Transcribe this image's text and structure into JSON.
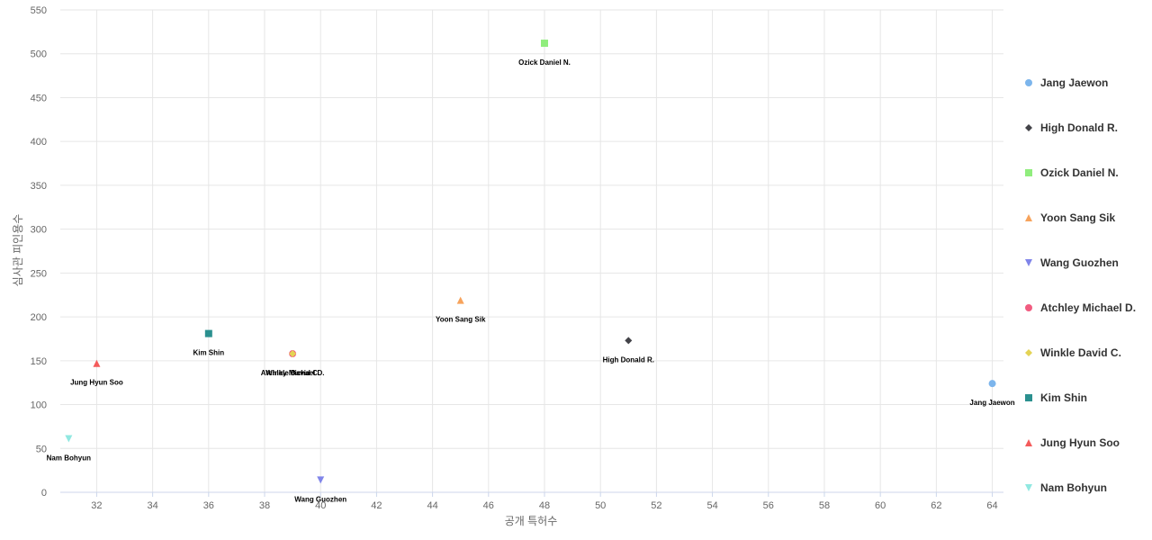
{
  "chart_data": {
    "type": "scatter",
    "title": "",
    "xlabel": "공개 특허수",
    "ylabel": "심사관 피인용수",
    "xlim": [
      30.7,
      64.4
    ],
    "ylim": [
      0,
      550
    ],
    "xticks": [
      32,
      34,
      36,
      38,
      40,
      42,
      44,
      46,
      48,
      50,
      52,
      54,
      56,
      58,
      60,
      62,
      64
    ],
    "yticks": [
      0,
      50,
      100,
      150,
      200,
      250,
      300,
      350,
      400,
      450,
      500,
      550
    ],
    "grid": true,
    "legend_position": "right",
    "series": [
      {
        "name": "Jang Jaewon",
        "x": 64,
        "y": 124,
        "marker": "circle",
        "color": "#7cb5ec"
      },
      {
        "name": "High Donald R.",
        "x": 51,
        "y": 173,
        "marker": "diamond",
        "color": "#434348"
      },
      {
        "name": "Ozick Daniel N.",
        "x": 48,
        "y": 512,
        "marker": "square",
        "color": "#90ed7d"
      },
      {
        "name": "Yoon Sang Sik",
        "x": 45,
        "y": 219,
        "marker": "triangle",
        "color": "#f7a35c"
      },
      {
        "name": "Wang Guozhen",
        "x": 40,
        "y": 14,
        "marker": "triangle-down",
        "color": "#8085e9"
      },
      {
        "name": "Atchley Michael D.",
        "x": 39,
        "y": 158,
        "marker": "circle",
        "color": "#f15c80"
      },
      {
        "name": "Winkle David C.",
        "x": 39,
        "y": 158,
        "marker": "diamond",
        "color": "#e4d354"
      },
      {
        "name": "Kim Shin",
        "x": 36,
        "y": 181,
        "marker": "square",
        "color": "#2b908f"
      },
      {
        "name": "Jung Hyun Soo",
        "x": 32,
        "y": 147,
        "marker": "triangle",
        "color": "#f45b5b"
      },
      {
        "name": "Nam Bohyun",
        "x": 31,
        "y": 61,
        "marker": "triangle-down",
        "color": "#91e8e1"
      }
    ]
  }
}
